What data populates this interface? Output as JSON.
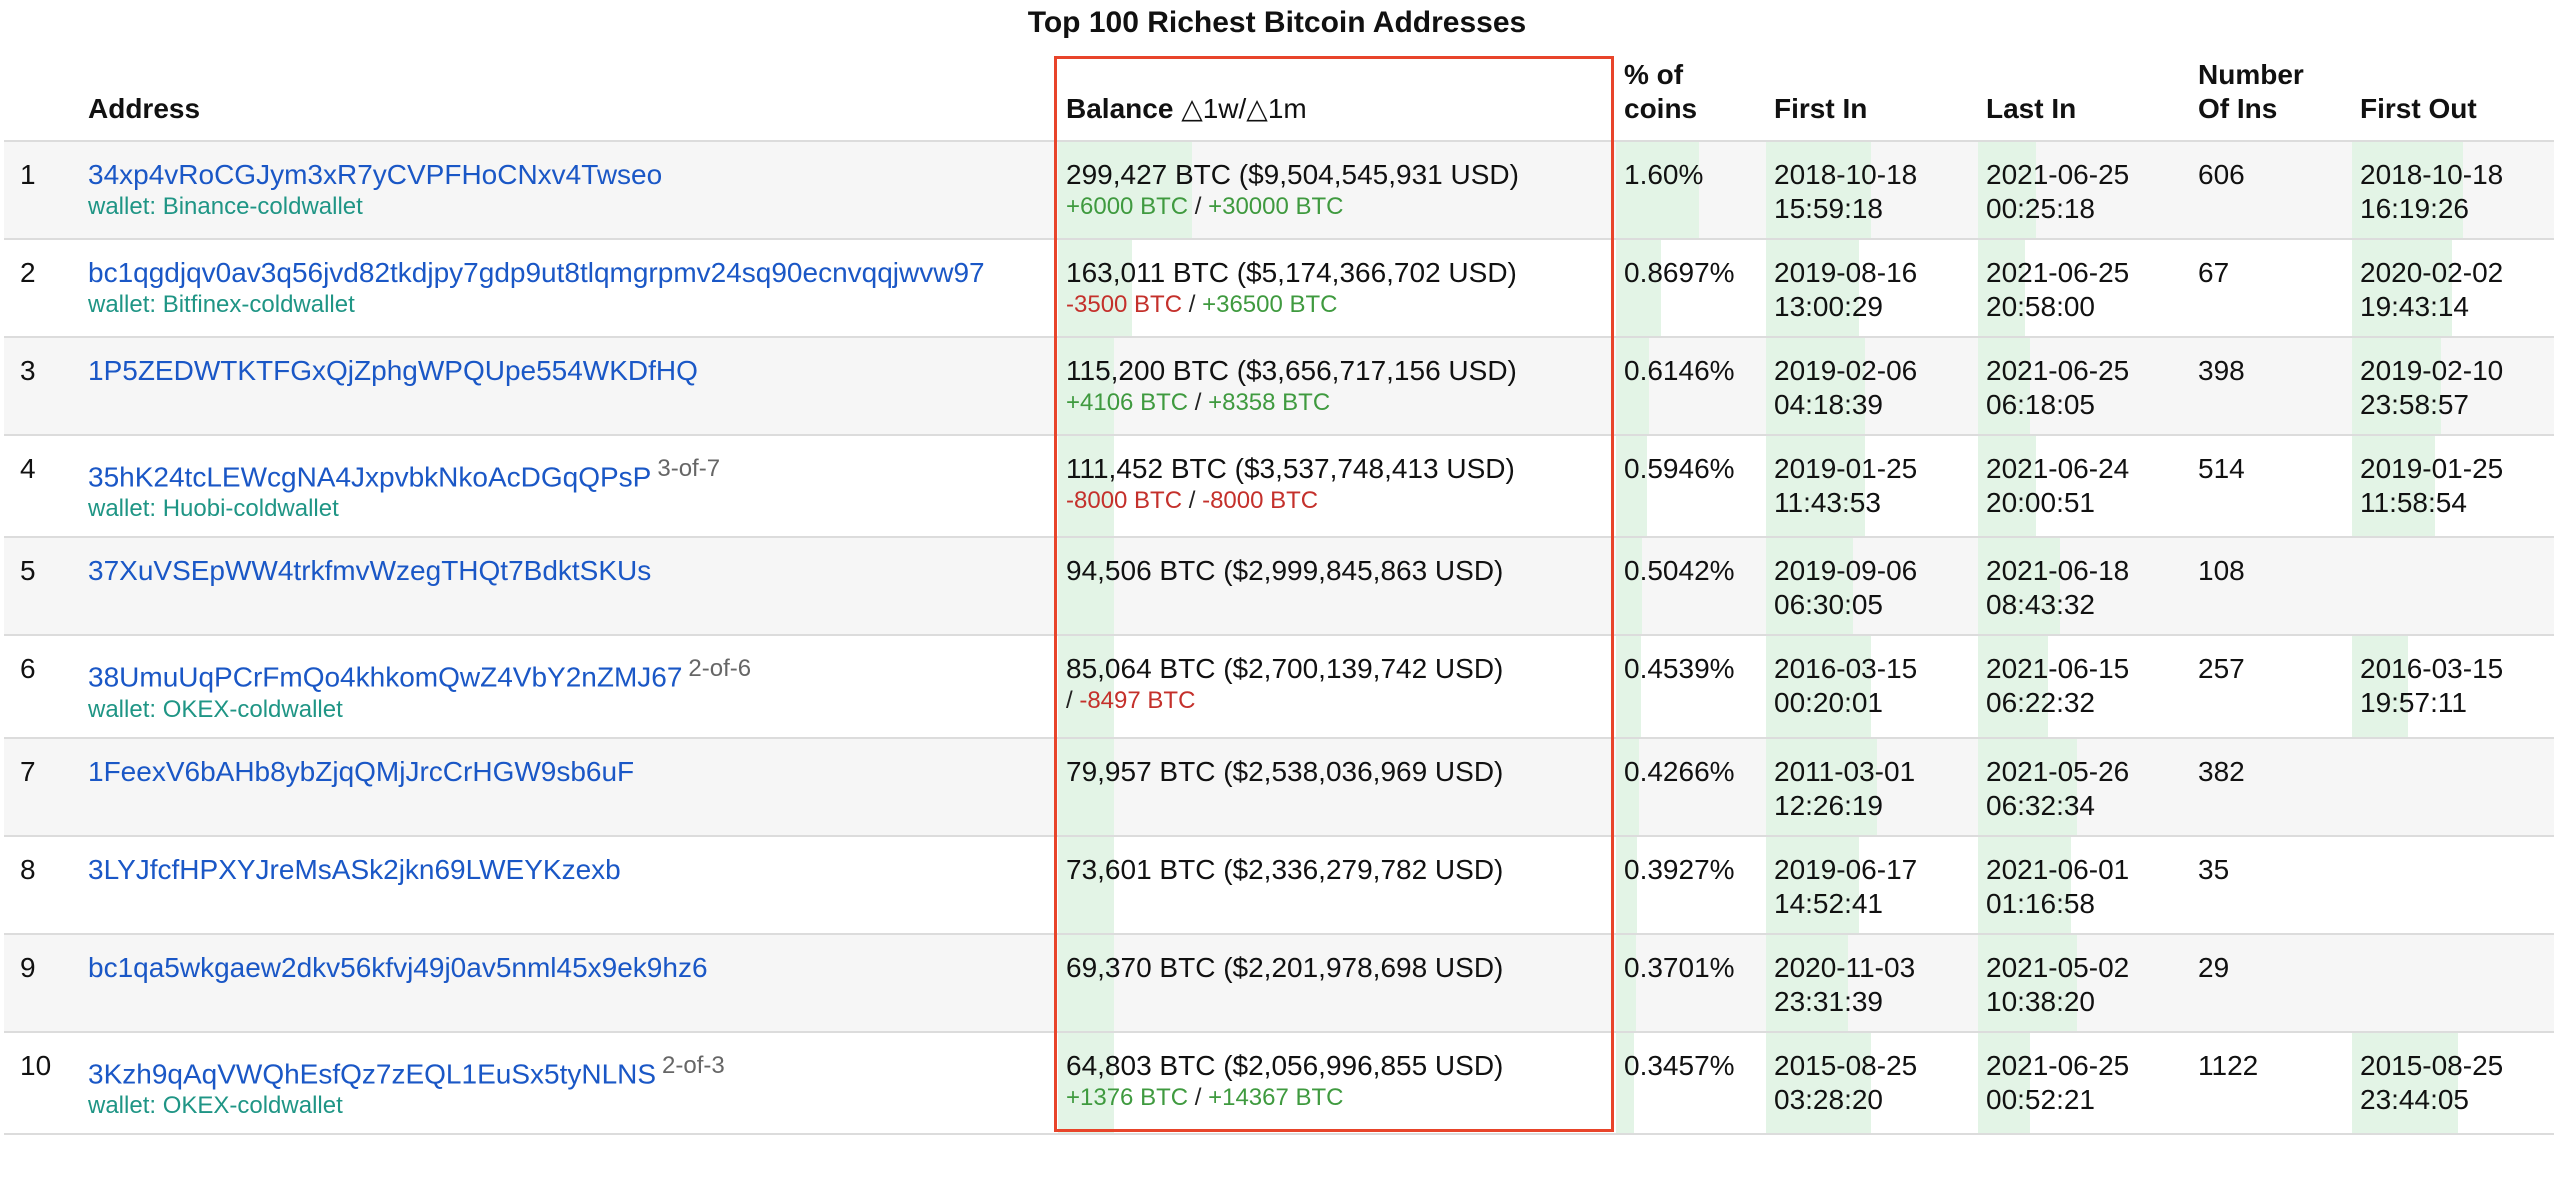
{
  "title": "Top 100 Richest Bitcoin Addresses",
  "headers": {
    "address": "Address",
    "balance": "Balance",
    "balance_delta": "△1w/△1m",
    "pct_line1": "% of",
    "pct_line2": "coins",
    "first_in": "First In",
    "last_in": "Last In",
    "ins_line1": "Number",
    "ins_line2": "Of Ins",
    "first_out": "First Out"
  },
  "highlight_color": "#e8442a",
  "rows": [
    {
      "rank": "1",
      "address": "34xp4vRoCGJym3xR7yCVPFHoCNxv4Twseo",
      "sig": "",
      "wallet": "wallet: Binance-coldwallet",
      "balance": "299,427 BTC ($9,504,545,931 USD)",
      "d1w": "+6000 BTC",
      "d1w_sign": "pos",
      "sep": "/",
      "d1m": "+30000 BTC",
      "d1m_sign": "pos",
      "pct": "1.60%",
      "pct_fill": 1.0,
      "first_in": [
        "2018-10-18",
        "15:59:18"
      ],
      "first_in_fill": 0.9,
      "last_in": [
        "2021-06-25",
        "00:25:18"
      ],
      "last_in_fill": 0.5,
      "ins": "606",
      "first_out": [
        "2018-10-18",
        "16:19:26"
      ],
      "first_out_fill": 1.0
    },
    {
      "rank": "2",
      "address": "bc1qgdjqv0av3q56jvd82tkdjpy7gdp9ut8tlqmgrpmv24sq90ecnvqqjwvw97",
      "sig": "",
      "wallet": "wallet: Bitfinex-coldwallet",
      "balance": "163,011 BTC ($5,174,366,702 USD)",
      "d1w": "-3500 BTC",
      "d1w_sign": "neg",
      "sep": "/",
      "d1m": "+36500 BTC",
      "d1m_sign": "pos",
      "pct": "0.8697%",
      "pct_fill": 0.55,
      "first_in": [
        "2019-08-16",
        "13:00:29"
      ],
      "first_in_fill": 0.8,
      "last_in": [
        "2021-06-25",
        "20:58:00"
      ],
      "last_in_fill": 0.4,
      "ins": "67",
      "first_out": [
        "2020-02-02",
        "19:43:14"
      ],
      "first_out_fill": 0.9
    },
    {
      "rank": "3",
      "address": "1P5ZEDWTKTFGxQjZphgWPQUpe554WKDfHQ",
      "sig": "",
      "wallet": "",
      "balance": "115,200 BTC ($3,656,717,156 USD)",
      "d1w": "+4106 BTC",
      "d1w_sign": "pos",
      "sep": "/",
      "d1m": "+8358 BTC",
      "d1m_sign": "pos",
      "pct": "0.6146%",
      "pct_fill": 0.4,
      "first_in": [
        "2019-02-06",
        "04:18:39"
      ],
      "first_in_fill": 0.85,
      "last_in": [
        "2021-06-25",
        "06:18:05"
      ],
      "last_in_fill": 0.45,
      "ins": "398",
      "first_out": [
        "2019-02-10",
        "23:58:57"
      ],
      "first_out_fill": 0.8
    },
    {
      "rank": "4",
      "address": "35hK24tcLEWcgNA4JxpvbkNkoAcDGqQPsP",
      "sig": "3-of-7",
      "wallet": "wallet: Huobi-coldwallet",
      "balance": "111,452 BTC ($3,537,748,413 USD)",
      "d1w": "-8000 BTC",
      "d1w_sign": "neg",
      "sep": "/",
      "d1m": "-8000 BTC",
      "d1m_sign": "neg",
      "pct": "0.5946%",
      "pct_fill": 0.38,
      "first_in": [
        "2019-01-25",
        "11:43:53"
      ],
      "first_in_fill": 0.85,
      "last_in": [
        "2021-06-24",
        "20:00:51"
      ],
      "last_in_fill": 0.5,
      "ins": "514",
      "first_out": [
        "2019-01-25",
        "11:58:54"
      ],
      "first_out_fill": 0.75
    },
    {
      "rank": "5",
      "address": "37XuVSEpWW4trkfmvWzegTHQt7BdktSKUs",
      "sig": "",
      "wallet": "",
      "balance": "94,506 BTC ($2,999,845,863 USD)",
      "d1w": "",
      "d1w_sign": "",
      "sep": "",
      "d1m": "",
      "d1m_sign": "",
      "pct": "0.5042%",
      "pct_fill": 0.32,
      "first_in": [
        "2019-09-06",
        "06:30:05"
      ],
      "first_in_fill": 0.75,
      "last_in": [
        "2021-06-18",
        "08:43:32"
      ],
      "last_in_fill": 0.7,
      "ins": "108",
      "first_out": [
        "",
        ""
      ],
      "first_out_fill": 0
    },
    {
      "rank": "6",
      "address": "38UmuUqPCrFmQo4khkomQwZ4VbY2nZMJ67",
      "sig": "2-of-6",
      "wallet": "wallet: OKEX-coldwallet",
      "balance": "85,064 BTC ($2,700,139,742 USD)",
      "d1w": "",
      "d1w_sign": "",
      "sep": "/",
      "d1m": "-8497 BTC",
      "d1m_sign": "neg",
      "pct": "0.4539%",
      "pct_fill": 0.3,
      "first_in": [
        "2016-03-15",
        "00:20:01"
      ],
      "first_in_fill": 0.9,
      "last_in": [
        "2021-06-15",
        "06:22:32"
      ],
      "last_in_fill": 0.6,
      "ins": "257",
      "first_out": [
        "2016-03-15",
        "19:57:11"
      ],
      "first_out_fill": 0.5
    },
    {
      "rank": "7",
      "address": "1FeexV6bAHb8ybZjqQMjJrcCrHGW9sb6uF",
      "sig": "",
      "wallet": "",
      "balance": "79,957 BTC ($2,538,036,969 USD)",
      "d1w": "",
      "d1w_sign": "",
      "sep": "",
      "d1m": "",
      "d1m_sign": "",
      "pct": "0.4266%",
      "pct_fill": 0.28,
      "first_in": [
        "2011-03-01",
        "12:26:19"
      ],
      "first_in_fill": 0.95,
      "last_in": [
        "2021-05-26",
        "06:32:34"
      ],
      "last_in_fill": 0.85,
      "ins": "382",
      "first_out": [
        "",
        ""
      ],
      "first_out_fill": 0
    },
    {
      "rank": "8",
      "address": "3LYJfcfHPXYJreMsASk2jkn69LWEYKzexb",
      "sig": "",
      "wallet": "",
      "balance": "73,601 BTC ($2,336,279,782 USD)",
      "d1w": "",
      "d1w_sign": "",
      "sep": "",
      "d1m": "",
      "d1m_sign": "",
      "pct": "0.3927%",
      "pct_fill": 0.26,
      "first_in": [
        "2019-06-17",
        "14:52:41"
      ],
      "first_in_fill": 0.8,
      "last_in": [
        "2021-06-01",
        "01:16:58"
      ],
      "last_in_fill": 0.8,
      "ins": "35",
      "first_out": [
        "",
        ""
      ],
      "first_out_fill": 0
    },
    {
      "rank": "9",
      "address": "bc1qa5wkgaew2dkv56kfvj49j0av5nml45x9ek9hz6",
      "sig": "",
      "wallet": "",
      "balance": "69,370 BTC ($2,201,978,698 USD)",
      "d1w": "",
      "d1w_sign": "",
      "sep": "",
      "d1m": "",
      "d1m_sign": "",
      "pct": "0.3701%",
      "pct_fill": 0.24,
      "first_in": [
        "2020-11-03",
        "23:31:39"
      ],
      "first_in_fill": 0.7,
      "last_in": [
        "2021-05-02",
        "10:38:20"
      ],
      "last_in_fill": 0.85,
      "ins": "29",
      "first_out": [
        "",
        ""
      ],
      "first_out_fill": 0
    },
    {
      "rank": "10",
      "address": "3Kzh9qAqVWQhEsfQz7zEQL1EuSx5tyNLNS",
      "sig": "2-of-3",
      "wallet": "wallet: OKEX-coldwallet",
      "balance": "64,803 BTC ($2,056,996,855 USD)",
      "d1w": "+1376 BTC",
      "d1w_sign": "pos",
      "sep": "/",
      "d1m": "+14367 BTC",
      "d1m_sign": "pos",
      "pct": "0.3457%",
      "pct_fill": 0.22,
      "first_in": [
        "2015-08-25",
        "03:28:20"
      ],
      "first_in_fill": 0.9,
      "last_in": [
        "2021-06-25",
        "00:52:21"
      ],
      "last_in_fill": 0.45,
      "ins": "1122",
      "first_out": [
        "2015-08-25",
        "23:44:05"
      ],
      "first_out_fill": 0.95
    }
  ]
}
